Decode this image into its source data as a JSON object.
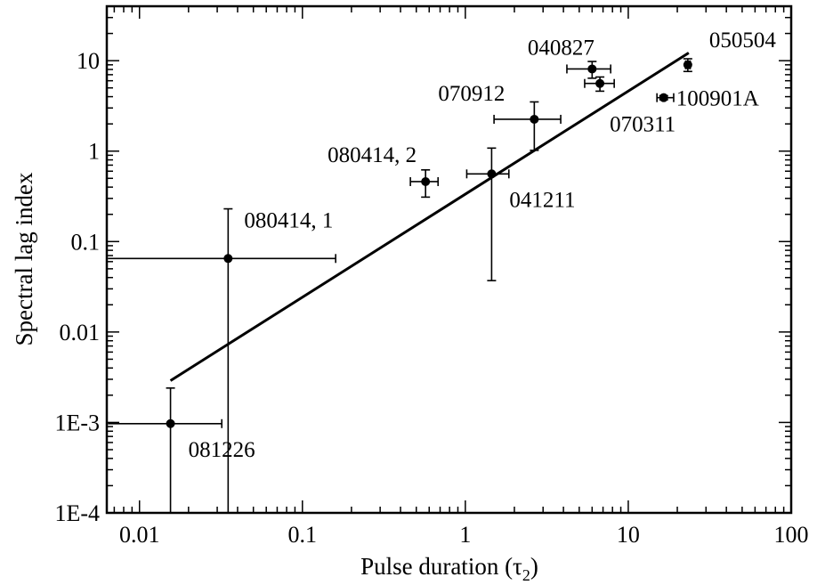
{
  "chart_data": {
    "type": "scatter",
    "title": "",
    "xlabel": "Pulse duration (τ",
    "xlabel_subscript": "2",
    "xlabel_close": ")",
    "ylabel": "Spectral lag index",
    "x_scale": "log",
    "y_scale": "log",
    "xlim": [
      0.0063,
      100
    ],
    "ylim": [
      0.0001,
      40
    ],
    "grid": false,
    "x_ticks": [
      {
        "value": 0.01,
        "label": "0.01"
      },
      {
        "value": 0.1,
        "label": "0.1"
      },
      {
        "value": 1,
        "label": "1"
      },
      {
        "value": 10,
        "label": "10"
      },
      {
        "value": 100,
        "label": "100"
      }
    ],
    "y_ticks": [
      {
        "value": 0.0001,
        "label": "1E-4"
      },
      {
        "value": 0.001,
        "label": "1E-3"
      },
      {
        "value": 0.01,
        "label": "0.01"
      },
      {
        "value": 0.1,
        "label": "0.1"
      },
      {
        "value": 1,
        "label": "1"
      },
      {
        "value": 10,
        "label": "10"
      }
    ],
    "points": [
      {
        "label": "081226",
        "x": 0.0155,
        "y": 0.00097,
        "x_err": [
          0.0064,
          0.032
        ],
        "y_err": [
          0.0001,
          0.0024
        ],
        "label_anchor": "below-right"
      },
      {
        "label": "080414, 1",
        "x": 0.035,
        "y": 0.065,
        "x_err": [
          0.0064,
          0.16
        ],
        "y_err": [
          0.0001,
          0.23
        ],
        "label_anchor": "above-right"
      },
      {
        "label": "080414, 2",
        "x": 0.57,
        "y": 0.46,
        "x_err": [
          0.46,
          0.68
        ],
        "y_err": [
          0.31,
          0.62
        ],
        "label_anchor": "above-left"
      },
      {
        "label": "041211",
        "x": 1.45,
        "y": 0.56,
        "x_err": [
          1.02,
          1.85
        ],
        "y_err": [
          0.037,
          1.08
        ],
        "label_anchor": "below-right"
      },
      {
        "label": "070912",
        "x": 2.65,
        "y": 2.25,
        "x_err": [
          1.5,
          3.85
        ],
        "y_err": [
          1.02,
          3.5
        ],
        "label_anchor": "above-left"
      },
      {
        "label": "040827",
        "x": 6.0,
        "y": 8.1,
        "x_err": [
          4.2,
          7.8
        ],
        "y_err": [
          6.4,
          9.8
        ],
        "label_anchor": "above-left"
      },
      {
        "label": "070311",
        "x": 6.7,
        "y": 5.6,
        "x_err": [
          5.4,
          8.2
        ],
        "y_err": [
          4.6,
          6.6
        ],
        "label_anchor": "below-right"
      },
      {
        "label": "100901A",
        "x": 16.5,
        "y": 3.9,
        "x_err": [
          15.0,
          19.0
        ],
        "y_err": [
          3.7,
          4.1
        ],
        "label_anchor": "right"
      },
      {
        "label": "050504",
        "x": 23.2,
        "y": 9.0,
        "x_err": [
          22.5,
          24.0
        ],
        "y_err": [
          7.6,
          10.5
        ],
        "label_anchor": "above-right"
      }
    ],
    "fit_line": {
      "x": [
        0.0155,
        23.5
      ],
      "y": [
        0.0029,
        12.2
      ]
    }
  }
}
